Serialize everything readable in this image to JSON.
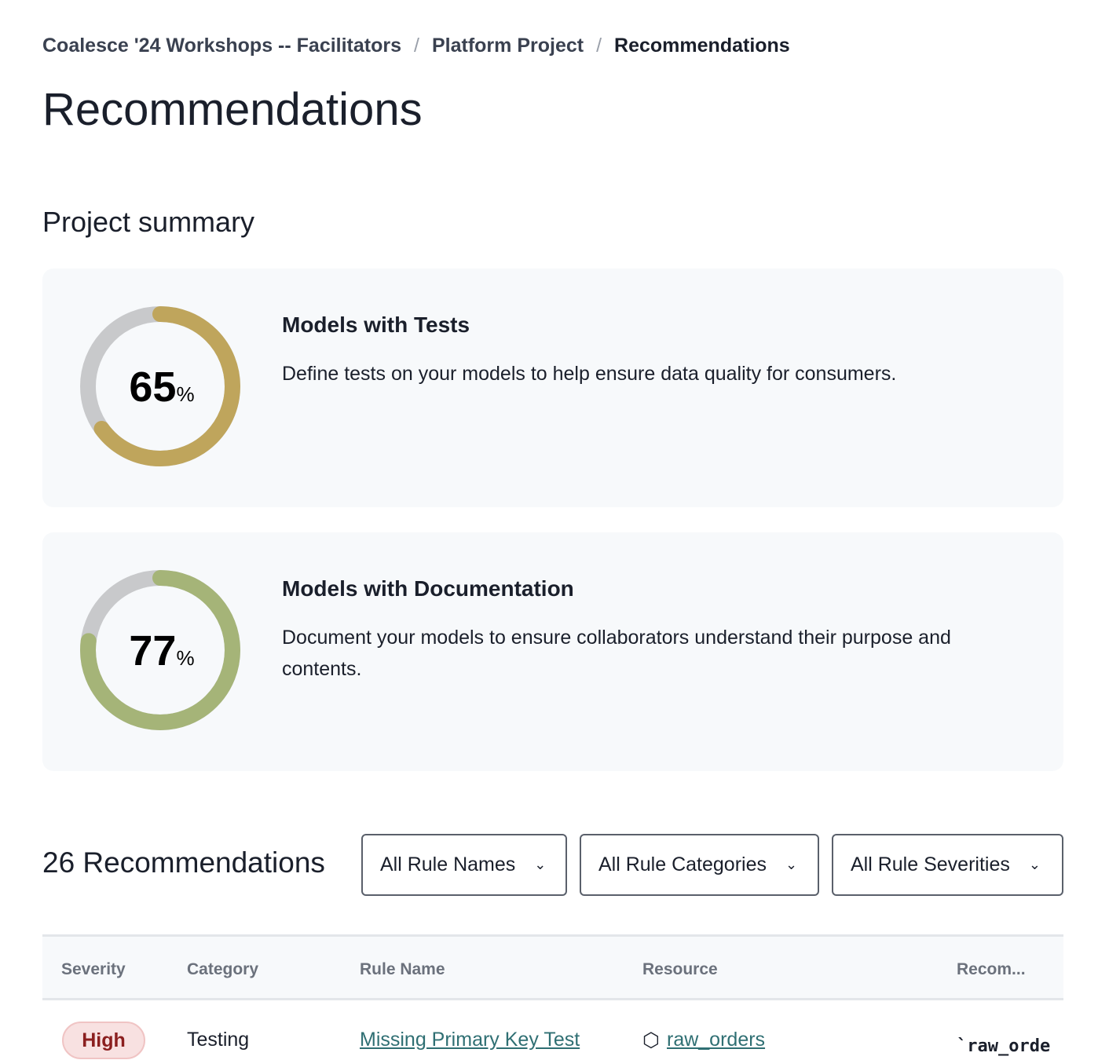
{
  "breadcrumb": [
    "Coalesce '24 Workshops -- Facilitators",
    "Platform Project",
    "Recommendations"
  ],
  "page_title": "Recommendations",
  "summary_title": "Project summary",
  "cards": [
    {
      "percent": 65,
      "percent_text": "65",
      "unit": "%",
      "title": "Models with Tests",
      "description": "Define tests on your models to help ensure data quality for consumers.",
      "color": "#bfa55c"
    },
    {
      "percent": 77,
      "percent_text": "77",
      "unit": "%",
      "title": "Models with Documentation",
      "description": "Document your models to ensure collaborators understand their purpose and contents.",
      "color": "#a5b478"
    }
  ],
  "track_color": "#c8c9cb",
  "recommendations_count": "26 Recommendations",
  "filters": [
    "All Rule Names",
    "All Rule Categories",
    "All Rule Severities"
  ],
  "table": {
    "headers": [
      "Severity",
      "Category",
      "Rule Name",
      "Resource",
      "Recom..."
    ],
    "rows": [
      {
        "severity": "High",
        "category": "Testing",
        "rule_name": "Missing Primary Key Test",
        "resource": "raw_orders",
        "recommendation": "`raw_orde"
      }
    ]
  }
}
